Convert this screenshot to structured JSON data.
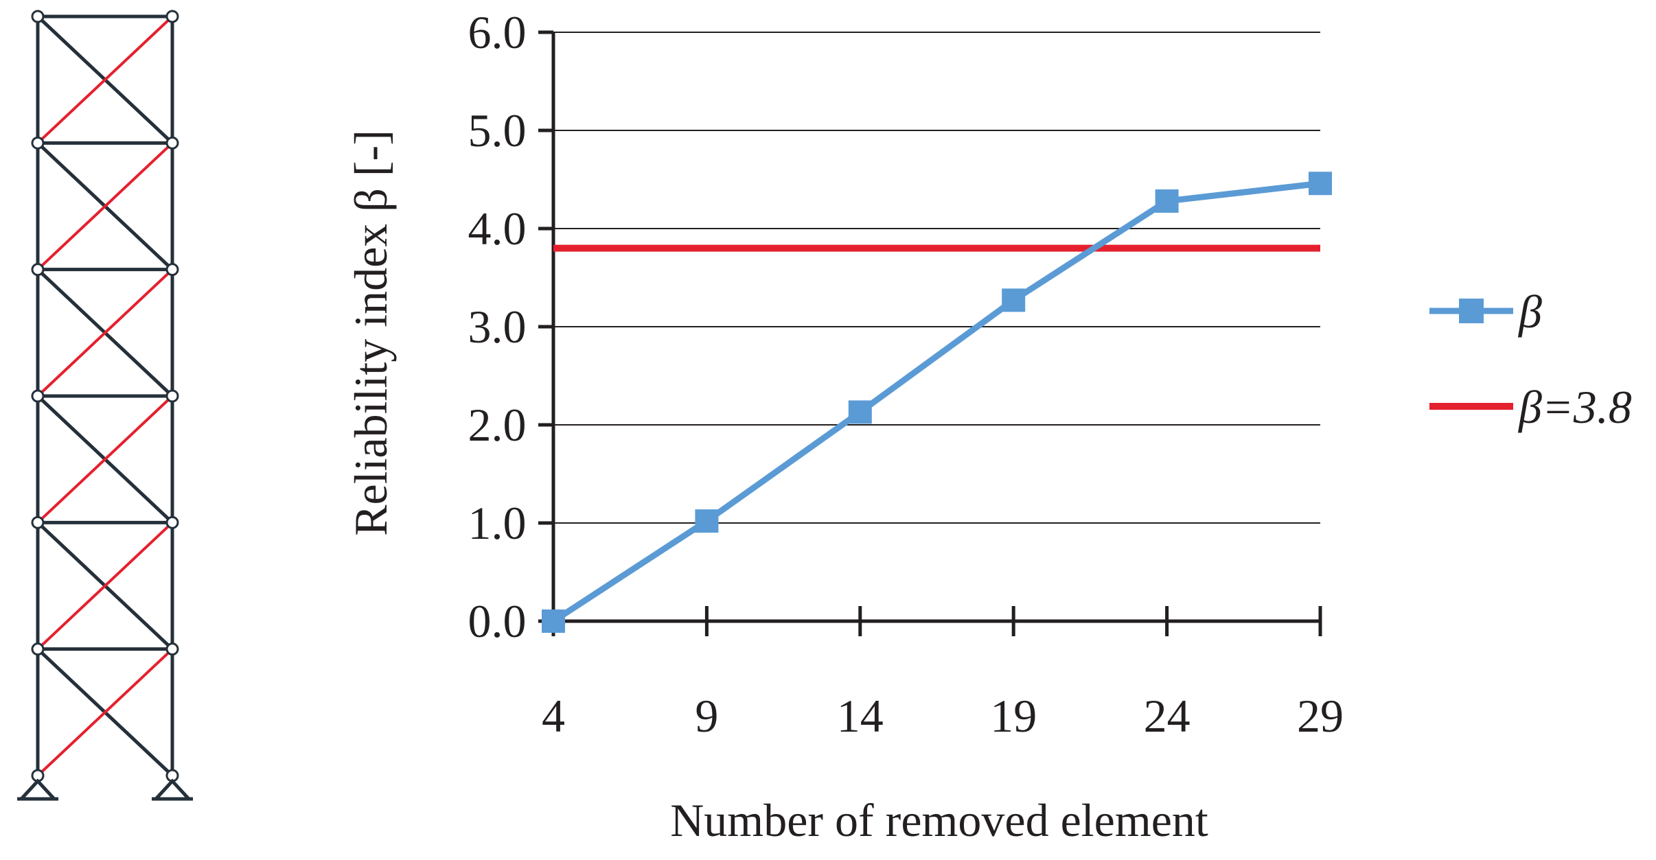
{
  "chart_data": {
    "type": "line",
    "xlabel": "Number of removed element",
    "ylabel": "Reliability index β [-]",
    "x": [
      4,
      9,
      14,
      19,
      24,
      29
    ],
    "x_tick_labels": [
      "4",
      "9",
      "14",
      "19",
      "24",
      "29"
    ],
    "ylim": [
      0,
      6
    ],
    "y_ticks": [
      0,
      1,
      2,
      3,
      4,
      5,
      6
    ],
    "y_tick_labels": [
      "0.0",
      "1.0",
      "2.0",
      "3.0",
      "4.0",
      "5.0",
      "6.0"
    ],
    "grid": "horizontal",
    "legend_position": "right",
    "series": [
      {
        "name": "β",
        "color": "#5b9bd5",
        "marker": "square",
        "values": [
          0.0,
          1.02,
          2.13,
          3.27,
          4.28,
          4.46
        ]
      }
    ],
    "reference_lines": [
      {
        "name": "β=3.8",
        "y": 3.8,
        "color": "#e5202e"
      }
    ]
  },
  "structure_diagram": {
    "panels": 6,
    "frame_color": "#25303a",
    "removed_member_color": "#e5202e"
  }
}
